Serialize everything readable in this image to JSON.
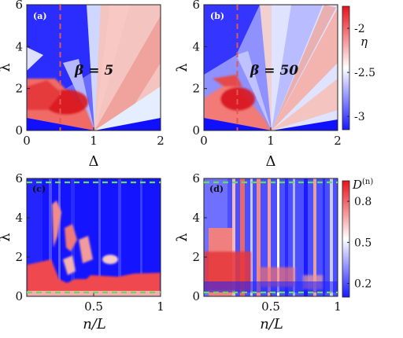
{
  "chart_data": [
    {
      "id": "a",
      "type": "heatmap",
      "panel_label": "(a)",
      "annotation": "β = 5",
      "xlabel": "Δ",
      "ylabel": "λ",
      "xlim": [
        0,
        2
      ],
      "ylim": [
        0,
        6
      ],
      "xticks": [
        "0",
        "1",
        "2"
      ],
      "yticks": [
        "0",
        "2",
        "4",
        "6"
      ],
      "value_range": [
        -3.0,
        -1.8
      ],
      "dashed_lines": [
        {
          "orientation": "vertical",
          "value": 0.5,
          "color": "#e0584f"
        }
      ],
      "features": "eta highest (red) near Δ≈0.5, λ≈1.5; fan of streaks from Δ=1, λ=0; low (blue) at upper-left and along λ≈0"
    },
    {
      "id": "b",
      "type": "heatmap",
      "panel_label": "(b)",
      "annotation": "β = 50",
      "xlabel": "Δ",
      "ylabel": "λ",
      "xlim": [
        0,
        2
      ],
      "ylim": [
        0,
        6
      ],
      "xticks": [
        "0",
        "1",
        "2"
      ],
      "yticks": [
        "0",
        "2",
        "4",
        "6"
      ],
      "value_range": [
        -3.0,
        -1.8
      ],
      "dashed_lines": [
        {
          "orientation": "vertical",
          "value": 0.5,
          "color": "#e0584f"
        }
      ],
      "features": "thinner red band near Δ≈0.5, λ≈1.5; fan of streaks from Δ=1, λ=0"
    },
    {
      "id": "c",
      "type": "heatmap",
      "panel_label": "(c)",
      "xlabel": "n/L",
      "ylabel": "λ",
      "xlim": [
        0,
        1
      ],
      "ylim": [
        0,
        6
      ],
      "xticks": [
        "0.5",
        "1"
      ],
      "yticks": [
        "0",
        "2",
        "4",
        "6"
      ],
      "value_range": [
        0.1,
        0.95
      ],
      "dashed_lines": [
        {
          "orientation": "horizontal",
          "value": 5.8,
          "color": "#66dd55"
        },
        {
          "orientation": "horizontal",
          "value": 0.2,
          "color": "#66dd55"
        }
      ],
      "features": "mostly blue; red region below λ≈1.5 for n/L < 0.25 and red band near λ≈0.5–1"
    },
    {
      "id": "d",
      "type": "heatmap",
      "panel_label": "(d)",
      "xlabel": "n/L",
      "ylabel": "λ",
      "xlim": [
        0,
        1
      ],
      "ylim": [
        0,
        6
      ],
      "xticks": [
        "0.5",
        "1"
      ],
      "yticks": [
        "0",
        "2",
        "4",
        "6"
      ],
      "value_range": [
        0.1,
        0.95
      ],
      "dashed_lines": [
        {
          "orientation": "horizontal",
          "value": 5.8,
          "color": "#66dd55"
        },
        {
          "orientation": "horizontal",
          "value": 0.2,
          "color": "#66dd55"
        }
      ],
      "features": "vertical red/blue stripes; more red at low λ and small n/L"
    }
  ],
  "colorbars": [
    {
      "label": "η",
      "ticks": [
        "-2",
        "-2.5",
        "-3"
      ],
      "tick_values": [
        -2,
        -2.5,
        -3
      ],
      "range": [
        -3.15,
        -1.75
      ]
    },
    {
      "label": "D(n)",
      "label_main": "D",
      "label_sup": "(n)",
      "ticks": [
        "0.8",
        "0.5",
        "0.2"
      ],
      "tick_values": [
        0.8,
        0.5,
        0.2
      ],
      "range": [
        0.1,
        0.95
      ]
    }
  ],
  "colors": {
    "low": "#1a1aff",
    "mid": "#ffffff",
    "high": "#e8141c",
    "axis": "#222222"
  }
}
